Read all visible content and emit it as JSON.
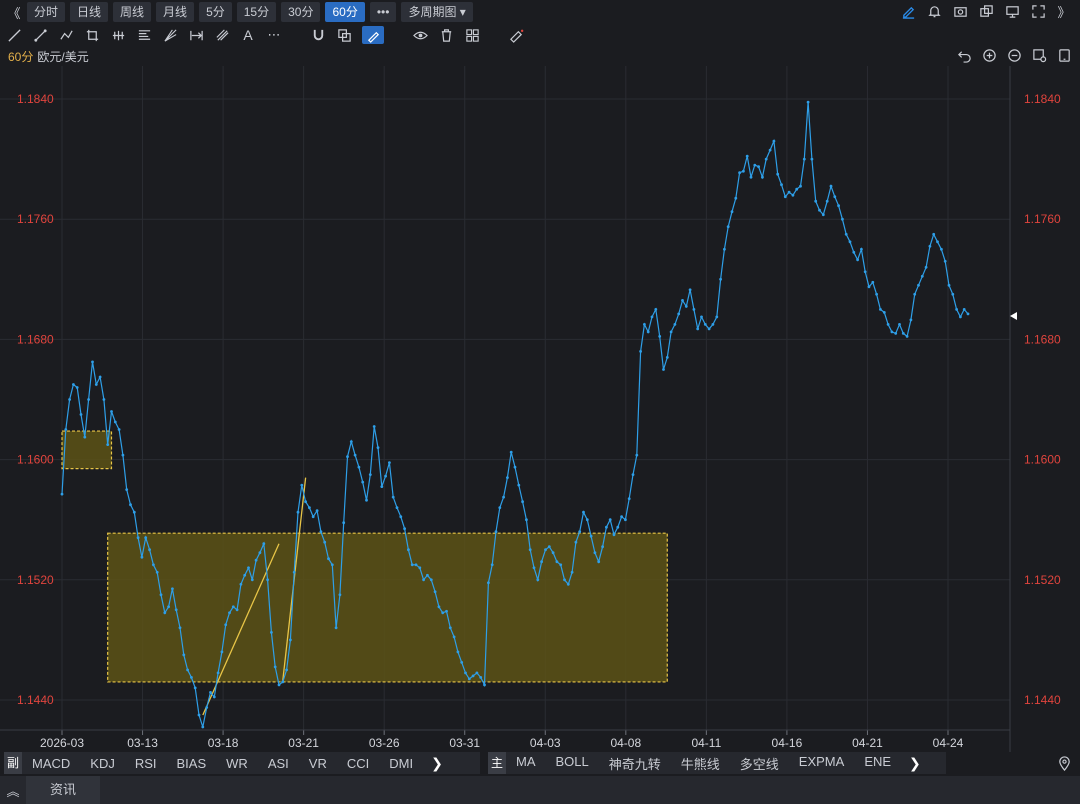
{
  "topbar": {
    "collapse_glyph": "《",
    "expand_glyph": "》",
    "periods": [
      "分时",
      "日线",
      "周线",
      "月线",
      "5分",
      "15分",
      "30分",
      "60分"
    ],
    "active_period": "60分",
    "more_glyph": "•••",
    "multi_period_label": "多周期图"
  },
  "toolbar": {
    "active_tool": "pencil-tool-icon",
    "tools": [
      "line-tool-icon",
      "ray-tool-icon",
      "polyline-tool-icon",
      "rect-tool-icon",
      "parallel-tool-icon",
      "fib-tool-icon",
      "fan-tool-icon",
      "range-tool-icon",
      "pitchfork-tool-icon",
      "text-tool-icon",
      "more-tool-icon",
      "magnet-icon",
      "clone-icon",
      "pencil-tool-icon",
      "eye-icon",
      "trash-icon",
      "layout-icon",
      "ruler-icon"
    ]
  },
  "info": {
    "period": "60分",
    "symbol": "欧元/美元"
  },
  "indicators": {
    "sub_tag": "副",
    "sub_list": [
      "MACD",
      "KDJ",
      "RSI",
      "BIAS",
      "WR",
      "ASI",
      "VR",
      "CCI",
      "DMI"
    ],
    "main_tag": "主",
    "main_list": [
      "MA",
      "BOLL",
      "神奇九转",
      "牛熊线",
      "多空线",
      "EXPMA",
      "ENE"
    ],
    "next_glyph": "❯"
  },
  "news": {
    "toggle_glyph": "︽",
    "label": "资讯"
  },
  "colors": {
    "price_line": "#2e9fe8",
    "axis_label": "#e0443d",
    "box_fill": "#5c5216",
    "box_border": "#e8c547",
    "trend": "#e8c547",
    "grid": "#2a2c32"
  },
  "chart_data": {
    "type": "line",
    "x_tick_labels": [
      "2026-03",
      "03-13",
      "03-18",
      "03-21",
      "03-26",
      "03-31",
      "04-03",
      "04-08",
      "04-11",
      "04-16",
      "04-21",
      "04-24"
    ],
    "y_tick_labels": [
      "1.1840",
      "1.1760",
      "1.1680",
      "1.1600",
      "1.1520",
      "1.1440"
    ],
    "ylim": [
      1.142,
      1.1862
    ],
    "grid": true,
    "series": [
      {
        "values": [
          1.1577,
          1.162,
          1.164,
          1.165,
          1.1648,
          1.163,
          1.1615,
          1.164,
          1.1665,
          1.165,
          1.1655,
          1.164,
          1.161,
          1.1632,
          1.1625,
          1.162,
          1.1603,
          1.158,
          1.157,
          1.1565,
          1.1548,
          1.1535,
          1.1548,
          1.154,
          1.153,
          1.1525,
          1.151,
          1.1498,
          1.1502,
          1.1514,
          1.15,
          1.1488,
          1.147,
          1.146,
          1.1455,
          1.1448,
          1.143,
          1.1422,
          1.1435,
          1.1445,
          1.1442,
          1.1458,
          1.1472,
          1.149,
          1.1498,
          1.1502,
          1.15,
          1.1517,
          1.1523,
          1.1528,
          1.152,
          1.1533,
          1.1538,
          1.1544,
          1.152,
          1.1485,
          1.1462,
          1.145,
          1.1452,
          1.146,
          1.148,
          1.1525,
          1.1565,
          1.1583,
          1.1572,
          1.1568,
          1.1562,
          1.1566,
          1.1552,
          1.1545,
          1.1534,
          1.153,
          1.1488,
          1.151,
          1.1558,
          1.1602,
          1.1612,
          1.1603,
          1.1595,
          1.1585,
          1.1573,
          1.159,
          1.1622,
          1.1608,
          1.1582,
          1.1589,
          1.1598,
          1.1575,
          1.1568,
          1.1562,
          1.1554,
          1.154,
          1.153,
          1.153,
          1.1528,
          1.152,
          1.1523,
          1.152,
          1.1512,
          1.1502,
          1.1498,
          1.1499,
          1.1488,
          1.1482,
          1.1472,
          1.1465,
          1.1458,
          1.1454,
          1.1456,
          1.1458,
          1.1455,
          1.145,
          1.1518,
          1.153,
          1.1552,
          1.1568,
          1.1575,
          1.1588,
          1.1605,
          1.1595,
          1.1583,
          1.1572,
          1.156,
          1.154,
          1.1528,
          1.152,
          1.1532,
          1.154,
          1.1542,
          1.1538,
          1.1532,
          1.153,
          1.152,
          1.1517,
          1.1525,
          1.1545,
          1.1552,
          1.1565,
          1.156,
          1.1549,
          1.1538,
          1.1532,
          1.1542,
          1.1555,
          1.156,
          1.155,
          1.1555,
          1.1562,
          1.156,
          1.1574,
          1.159,
          1.1603,
          1.1672,
          1.169,
          1.1685,
          1.1695,
          1.17,
          1.1682,
          1.166,
          1.1668,
          1.1685,
          1.169,
          1.1697,
          1.1706,
          1.1702,
          1.1713,
          1.17,
          1.1687,
          1.1695,
          1.169,
          1.1687,
          1.169,
          1.1695,
          1.172,
          1.174,
          1.1755,
          1.1765,
          1.1774,
          1.1791,
          1.1792,
          1.1802,
          1.1788,
          1.1796,
          1.1795,
          1.1788,
          1.18,
          1.1806,
          1.1812,
          1.179,
          1.1783,
          1.1775,
          1.1778,
          1.1776,
          1.178,
          1.1782,
          1.18,
          1.1838,
          1.18,
          1.1772,
          1.1766,
          1.1763,
          1.1772,
          1.1782,
          1.1775,
          1.1769,
          1.176,
          1.175,
          1.1745,
          1.1738,
          1.1733,
          1.174,
          1.1725,
          1.1715,
          1.1718,
          1.171,
          1.17,
          1.1698,
          1.169,
          1.1685,
          1.1684,
          1.169,
          1.1684,
          1.1682,
          1.1693,
          1.171,
          1.1716,
          1.1722,
          1.1728,
          1.1742,
          1.175,
          1.1745,
          1.174,
          1.1732,
          1.1716,
          1.171,
          1.17,
          1.1695,
          1.17,
          1.1697
        ]
      }
    ],
    "annotations": [
      {
        "type": "box",
        "x": [
          0,
          13
        ],
        "y": [
          1.1594,
          1.1619
        ]
      },
      {
        "type": "box",
        "x": [
          12,
          159
        ],
        "y": [
          1.1452,
          1.1551
        ]
      },
      {
        "type": "trendline",
        "x": [
          37,
          57
        ],
        "y": [
          1.143,
          1.1544
        ]
      },
      {
        "type": "trendline",
        "x": [
          58,
          64
        ],
        "y": [
          1.1453,
          1.1588
        ]
      }
    ]
  }
}
